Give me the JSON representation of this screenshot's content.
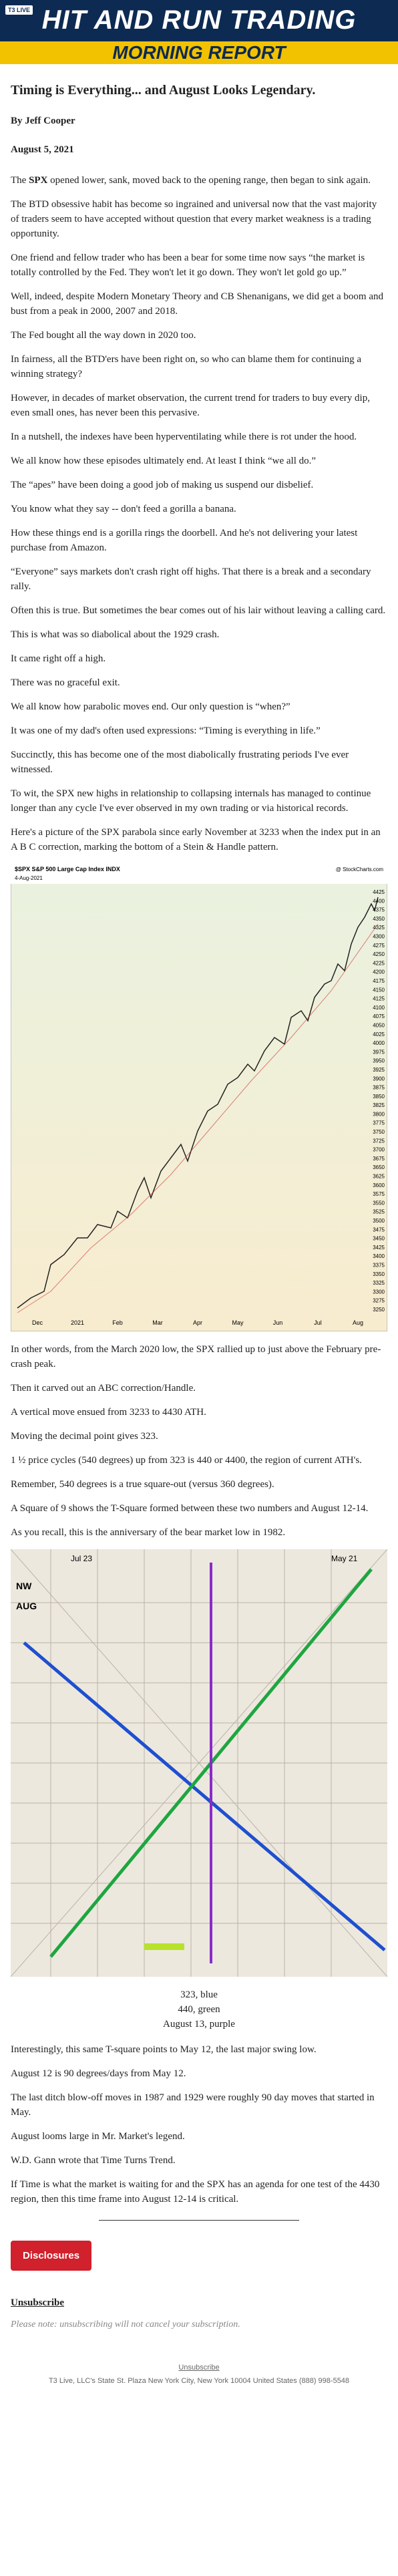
{
  "header": {
    "logo": "T3 LIVE",
    "title": "HIT AND RUN TRADING",
    "subtitle": "MORNING REPORT"
  },
  "article": {
    "title": "Timing is Everything... and August Looks Legendary.",
    "author": "By Jeff Cooper",
    "date": "August 5, 2021",
    "lead": [
      "The ",
      "SPX",
      " opened lower, sank, moved back to the opening range, then began to sink again."
    ],
    "paragraphs_1": [
      "The BTD obsessive habit has become so ingrained and universal now that the vast majority of traders seem to have accepted without question that every market weakness is a trading opportunity.",
      "One friend and fellow trader who has been a bear for some time now says “the market is totally controlled by the Fed. They won't let it go down. They won't let gold go up.”",
      "Well, indeed, despite Modern Monetary Theory and CB Shenanigans, we did get a boom and bust from a peak in 2000, 2007 and 2018.",
      "The Fed bought all the way down in 2020 too.",
      "In fairness, all the BTD'ers have been right on, so who can blame them for continuing a winning strategy?",
      "However, in decades of market observation, the current trend for traders to buy every dip, even small ones, has never been this pervasive.",
      "In a nutshell, the indexes have been hyperventilating while there is rot under the hood.",
      "We all know how these episodes ultimately end. At least I think “we all do.”",
      "The “apes” have been doing a good job of making us suspend our disbelief.",
      "You know what they say -- don't feed a gorilla a banana.",
      "How these things end is a gorilla rings the doorbell. And he's not delivering your latest purchase from Amazon.",
      "“Everyone” says markets don't crash right off highs. That there is a break and a secondary rally.",
      "Often this is true. But sometimes the bear comes out of his lair without leaving a calling card.",
      "This is what was so diabolical about the 1929 crash.",
      "It came right off a high.",
      "There was no graceful exit.",
      "We all know how parabolic moves end. Our only question is “when?”",
      "It was one of my dad's often used expressions: “Timing is everything in life.”",
      "Succinctly, this has become one of the most diabolically frustrating periods I've ever witnessed.",
      "To wit, the SPX new highs in relationship to collapsing internals has managed to continue longer than any cycle I've ever observed in my own trading or via historical records.",
      "Here's a picture of the SPX parabola since early November at 3233 when the index put in an A B C correction, marking the bottom of a Stein & Handle pattern."
    ],
    "chart": {
      "title": "$SPX S&P 500 Large Cap Index INDX",
      "source": "@ StockCharts.com",
      "date": "4-Aug-2021",
      "x_labels": [
        "Dec",
        "2021",
        "Feb",
        "Mar",
        "Apr",
        "May",
        "Jun",
        "Jul",
        "Aug"
      ],
      "y_labels": [
        4425,
        4400,
        4375,
        4350,
        4325,
        4300,
        4275,
        4250,
        4225,
        4200,
        4175,
        4150,
        4125,
        4100,
        4075,
        4050,
        4025,
        4000,
        3975,
        3950,
        3925,
        3900,
        3875,
        3850,
        3825,
        3800,
        3775,
        3750,
        3725,
        3700,
        3675,
        3650,
        3625,
        3600,
        3575,
        3550,
        3525,
        3500,
        3475,
        3450,
        3425,
        3400,
        3375,
        3350,
        3325,
        3300,
        3275,
        3250
      ]
    },
    "paragraphs_2": [
      "In other words, from the March 2020 low, the SPX rallied up to just above the February pre-crash peak.",
      "Then it carved out an ABC correction/Handle.",
      "A vertical move ensued from 3233 to 4430 ATH.",
      "Moving the decimal point gives 323.",
      "1 ½ price cycles (540 degrees) up from 323 is 440 or 4400, the region of current ATH's.",
      "Remember, 540 degrees is a true square-out (versus 360 degrees).",
      "A Square of 9 shows the T-Square formed between these two numbers and August 12-14.",
      "As you recall, this is the anniversary of the bear market low in 1982."
    ],
    "figure": {
      "labels": [
        "Jul 23",
        "May 21",
        "NW",
        "AUG"
      ]
    },
    "captions": [
      "323, blue",
      "440, green",
      "August 13, purple"
    ],
    "paragraphs_3": [
      "Interestingly, this same T-square points to May 12, the last major swing low.",
      "August 12 is 90 degrees/days from May 12.",
      "The last ditch blow-off moves in 1987 and 1929 were roughly 90 day moves that started in May.",
      "August looms large in Mr. Market's legend.",
      "W.D. Gann wrote that Time Turns Trend.",
      "If Time is what the market is waiting for and the SPX has an agenda for one test of the 4430 region, then this time frame into August 12-14 is critical."
    ]
  },
  "footer": {
    "button": "Disclosures",
    "unsubscribe": "Unsubscribe",
    "note": "Please note: unsubscribing will not cancel your subscription.",
    "link": "Unsubscribe",
    "address": "T3 Live, LLC's State St. Plaza New York City, New York 10004 United States (888) 998-5548"
  }
}
